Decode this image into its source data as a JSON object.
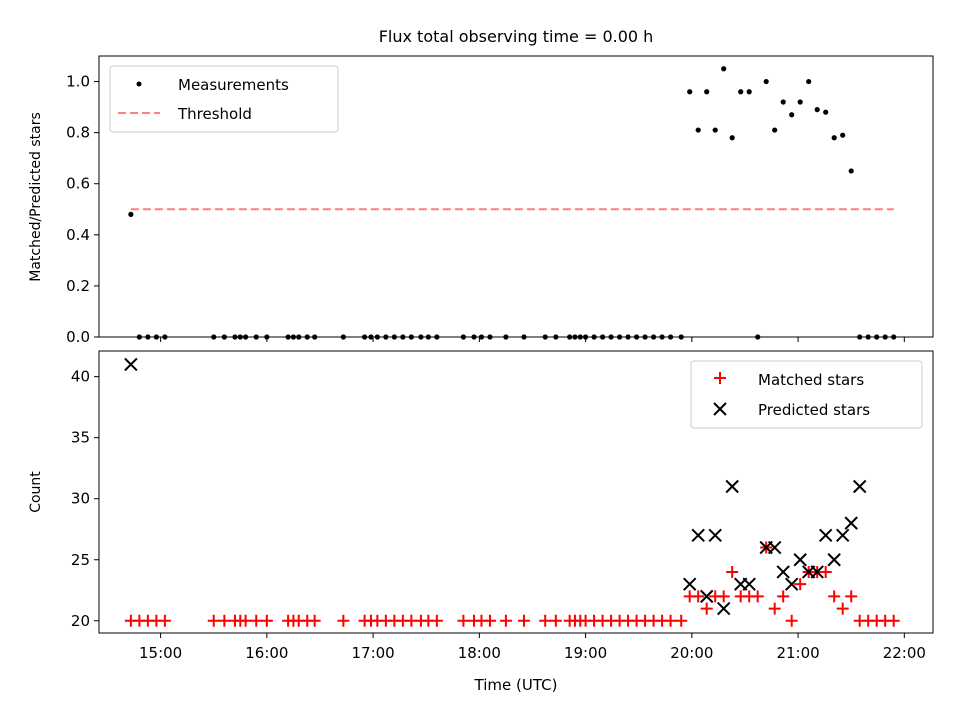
{
  "chart_data": [
    {
      "type": "scatter",
      "title": "Flux total observing time = 0.00 h",
      "xlabel": "",
      "ylabel": "Matched/Predicted stars",
      "xlim_hours": [
        14.42,
        22.27
      ],
      "ylim": [
        0,
        1.1
      ],
      "yticks": [
        "0.0",
        "0.2",
        "0.4",
        "0.6",
        "0.8",
        "1.0"
      ],
      "grid": false,
      "legend": {
        "placement": "top-left",
        "entries": [
          {
            "label": "Measurements",
            "marker": "dot",
            "color": "#000000"
          },
          {
            "label": "Threshold",
            "marker": "dashed-line",
            "color": "#ff7f7f"
          }
        ]
      },
      "threshold": {
        "value": 0.5,
        "x_start": 14.72,
        "x_end": 21.9
      },
      "series": [
        {
          "name": "Measurements",
          "x": [
            14.72,
            14.8,
            14.88,
            14.96,
            15.04,
            15.5,
            15.6,
            15.7,
            15.75,
            15.8,
            15.9,
            16.0,
            16.2,
            16.25,
            16.3,
            16.38,
            16.45,
            16.72,
            16.92,
            16.98,
            17.04,
            17.12,
            17.2,
            17.28,
            17.36,
            17.45,
            17.52,
            17.6,
            17.85,
            17.95,
            18.02,
            18.1,
            18.25,
            18.42,
            18.62,
            18.72,
            18.85,
            18.9,
            18.95,
            19.0,
            19.08,
            19.16,
            19.24,
            19.32,
            19.4,
            19.48,
            19.56,
            19.64,
            19.72,
            19.8,
            19.9,
            19.98,
            20.06,
            20.14,
            20.22,
            20.3,
            20.38,
            20.46,
            20.54,
            20.62,
            20.7,
            20.78,
            20.86,
            20.94,
            21.02,
            21.1,
            21.18,
            21.26,
            21.34,
            21.42,
            21.5,
            21.58,
            21.66,
            21.74,
            21.82,
            21.9
          ],
          "y": [
            0.48,
            0,
            0,
            0,
            0,
            0,
            0,
            0,
            0,
            0,
            0,
            0,
            0,
            0,
            0,
            0,
            0,
            0,
            0,
            0,
            0,
            0,
            0,
            0,
            0,
            0,
            0,
            0,
            0,
            0,
            0,
            0,
            0,
            0,
            0,
            0,
            0,
            0,
            0,
            0,
            0,
            0,
            0,
            0,
            0,
            0,
            0,
            0,
            0,
            0,
            0,
            0.96,
            0.81,
            0.96,
            0.81,
            1.05,
            0.78,
            0.96,
            0.96,
            0,
            1.0,
            0.81,
            0.92,
            0.87,
            0.92,
            1.0,
            0.89,
            0.88,
            0.78,
            0.79,
            0.65,
            0,
            0,
            0,
            0,
            0
          ],
          "color": "#000000"
        }
      ]
    },
    {
      "type": "scatter",
      "title": "",
      "xlabel": "Time (UTC)",
      "ylabel": "Count",
      "xlim_hours": [
        14.42,
        22.27
      ],
      "ylim": [
        19,
        42.1
      ],
      "yticks": [
        "20",
        "25",
        "30",
        "35",
        "40"
      ],
      "xticks": [
        "15:00",
        "16:00",
        "17:00",
        "18:00",
        "19:00",
        "20:00",
        "21:00",
        "22:00"
      ],
      "grid": false,
      "legend": {
        "placement": "top-right",
        "entries": [
          {
            "label": "Matched stars",
            "marker": "plus",
            "color": "#ff0000"
          },
          {
            "label": "Predicted stars",
            "marker": "x",
            "color": "#000000"
          }
        ]
      },
      "series": [
        {
          "name": "Matched stars",
          "x": [
            14.72,
            14.8,
            14.88,
            14.96,
            15.04,
            15.5,
            15.6,
            15.7,
            15.75,
            15.8,
            15.9,
            16.0,
            16.2,
            16.25,
            16.3,
            16.38,
            16.45,
            16.72,
            16.92,
            16.98,
            17.04,
            17.12,
            17.2,
            17.28,
            17.36,
            17.45,
            17.52,
            17.6,
            17.85,
            17.95,
            18.02,
            18.1,
            18.25,
            18.42,
            18.62,
            18.72,
            18.85,
            18.9,
            18.95,
            19.0,
            19.08,
            19.16,
            19.24,
            19.32,
            19.4,
            19.48,
            19.56,
            19.64,
            19.72,
            19.8,
            19.9,
            19.98,
            20.06,
            20.14,
            20.22,
            20.3,
            20.38,
            20.46,
            20.54,
            20.62,
            20.7,
            20.78,
            20.86,
            20.94,
            21.02,
            21.1,
            21.18,
            21.26,
            21.34,
            21.42,
            21.5,
            21.58,
            21.66,
            21.74,
            21.82,
            21.9
          ],
          "y": [
            20,
            20,
            20,
            20,
            20,
            20,
            20,
            20,
            20,
            20,
            20,
            20,
            20,
            20,
            20,
            20,
            20,
            20,
            20,
            20,
            20,
            20,
            20,
            20,
            20,
            20,
            20,
            20,
            20,
            20,
            20,
            20,
            20,
            20,
            20,
            20,
            20,
            20,
            20,
            20,
            20,
            20,
            20,
            20,
            20,
            20,
            20,
            20,
            20,
            20,
            20,
            22,
            22,
            21,
            22,
            22,
            24,
            22,
            22,
            22,
            26,
            21,
            22,
            20,
            23,
            24,
            24,
            24,
            22,
            21,
            22,
            20,
            20,
            20,
            20,
            20
          ],
          "color": "#ff0000"
        },
        {
          "name": "Predicted stars",
          "x": [
            14.72,
            19.98,
            20.06,
            20.14,
            20.22,
            20.3,
            20.38,
            20.46,
            20.54,
            20.7,
            20.78,
            20.86,
            20.94,
            21.02,
            21.1,
            21.18,
            21.26,
            21.34,
            21.42,
            21.5,
            21.58
          ],
          "y": [
            41,
            23,
            27,
            22,
            27,
            21,
            31,
            23,
            23,
            26,
            26,
            24,
            23,
            25,
            24,
            24,
            27,
            25,
            27,
            28,
            31
          ],
          "color": "#000000"
        }
      ]
    }
  ]
}
